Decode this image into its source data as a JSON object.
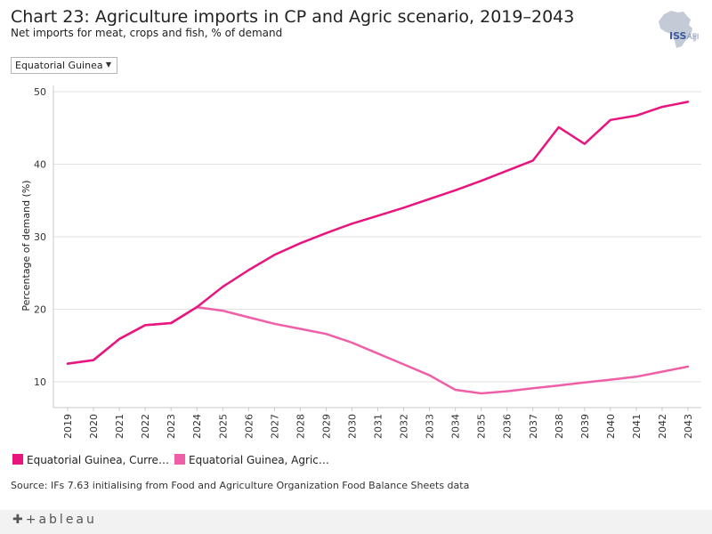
{
  "header": {
    "title": "Chart 23: Agriculture imports in CP and Agric scenario, 2019–2043",
    "subtitle": "Net imports for meat, crops and fish, % of demand"
  },
  "brand": {
    "logo_text": "ISS",
    "logo_suffix": "AFI",
    "footer_logo": "+ableau"
  },
  "filter": {
    "selected": "Equatorial Guinea",
    "caret_icon": "caret-down-icon"
  },
  "legend": {
    "items": [
      {
        "label": "Equatorial Guinea, Curre…",
        "color": "#e8157f"
      },
      {
        "label": "Equatorial Guinea, Agric…",
        "color": "#ef5fa7"
      }
    ]
  },
  "source": "Source: IFs 7.63 initialising from Food and Agriculture Organization Food Balance Sheets data",
  "chart_data": {
    "type": "line",
    "title": "Chart 23: Agriculture imports in CP and Agric scenario, 2019–2043",
    "xlabel": "",
    "ylabel": "Percentage of demand (%)",
    "ylim": [
      6,
      51
    ],
    "yticks": [
      10,
      20,
      30,
      40,
      50
    ],
    "grid": true,
    "categories": [
      "2019",
      "2020",
      "2021",
      "2022",
      "2023",
      "2024",
      "2025",
      "2026",
      "2027",
      "2028",
      "2029",
      "2030",
      "2031",
      "2032",
      "2033",
      "2034",
      "2035",
      "2036",
      "2037",
      "2038",
      "2039",
      "2040",
      "2041",
      "2042",
      "2043"
    ],
    "series": [
      {
        "name": "Equatorial Guinea, Current Path",
        "color": "#e8157f",
        "values": [
          12.5,
          13.0,
          15.9,
          17.8,
          18.1,
          20.3,
          23.1,
          25.4,
          27.5,
          29.1,
          30.5,
          31.8,
          32.9,
          34.0,
          35.2,
          36.4,
          37.7,
          39.1,
          40.5,
          45.1,
          42.8,
          46.1,
          46.7,
          47.9,
          48.6
        ]
      },
      {
        "name": "Equatorial Guinea, Agric",
        "color": "#ef5fa7",
        "values": [
          12.5,
          13.0,
          15.9,
          17.8,
          18.1,
          20.3,
          19.8,
          18.9,
          18.0,
          17.3,
          16.6,
          15.4,
          13.9,
          12.4,
          10.9,
          8.9,
          8.4,
          8.7,
          9.1,
          9.5,
          9.9,
          10.3,
          10.7,
          11.4,
          12.1
        ]
      }
    ]
  }
}
